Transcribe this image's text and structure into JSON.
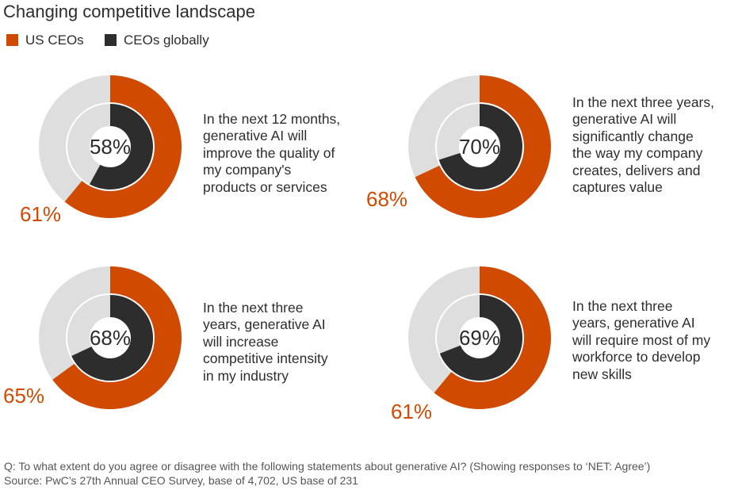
{
  "title": "Changing competitive landscape",
  "legend": [
    {
      "label": "US CEOs",
      "color": "#d04a02"
    },
    {
      "label": "CEOs globally",
      "color": "#2d2d2d"
    }
  ],
  "colors": {
    "track": "#dedede",
    "us": "#d04a02",
    "global": "#2d2d2d"
  },
  "chart_data": {
    "type": "donut",
    "series": [
      {
        "name": "US CEOs",
        "values": [
          61,
          68,
          65,
          61
        ]
      },
      {
        "name": "CEOs globally",
        "values": [
          58,
          70,
          68,
          69
        ]
      }
    ],
    "categories": [
      "In the next 12 months,\ngenerative AI will\nimprove the quality of\nmy company's\nproducts or services",
      "In the next three years,\ngenerative AI will\nsignificantly change\nthe way my company\ncreates, delivers and\ncaptures value",
      "In the next three\nyears, generative AI\nwill increase\ncompetitive intensity\nin my industry",
      "In the next three\nyears, generative AI\nwill require most of my\nworkforce to develop\nnew skills"
    ],
    "labels": {
      "us": [
        "61%",
        "68%",
        "65%",
        "61%"
      ],
      "global": [
        "58%",
        "70%",
        "68%",
        "69%"
      ]
    }
  },
  "footnotes": {
    "question": "Q: To what extent do you agree or disagree with the following statements about generative AI? (Showing responses to ‘NET: Agree’)",
    "source": "Source: PwC’s 27th Annual CEO Survey, base of 4,702, US base of 231"
  }
}
